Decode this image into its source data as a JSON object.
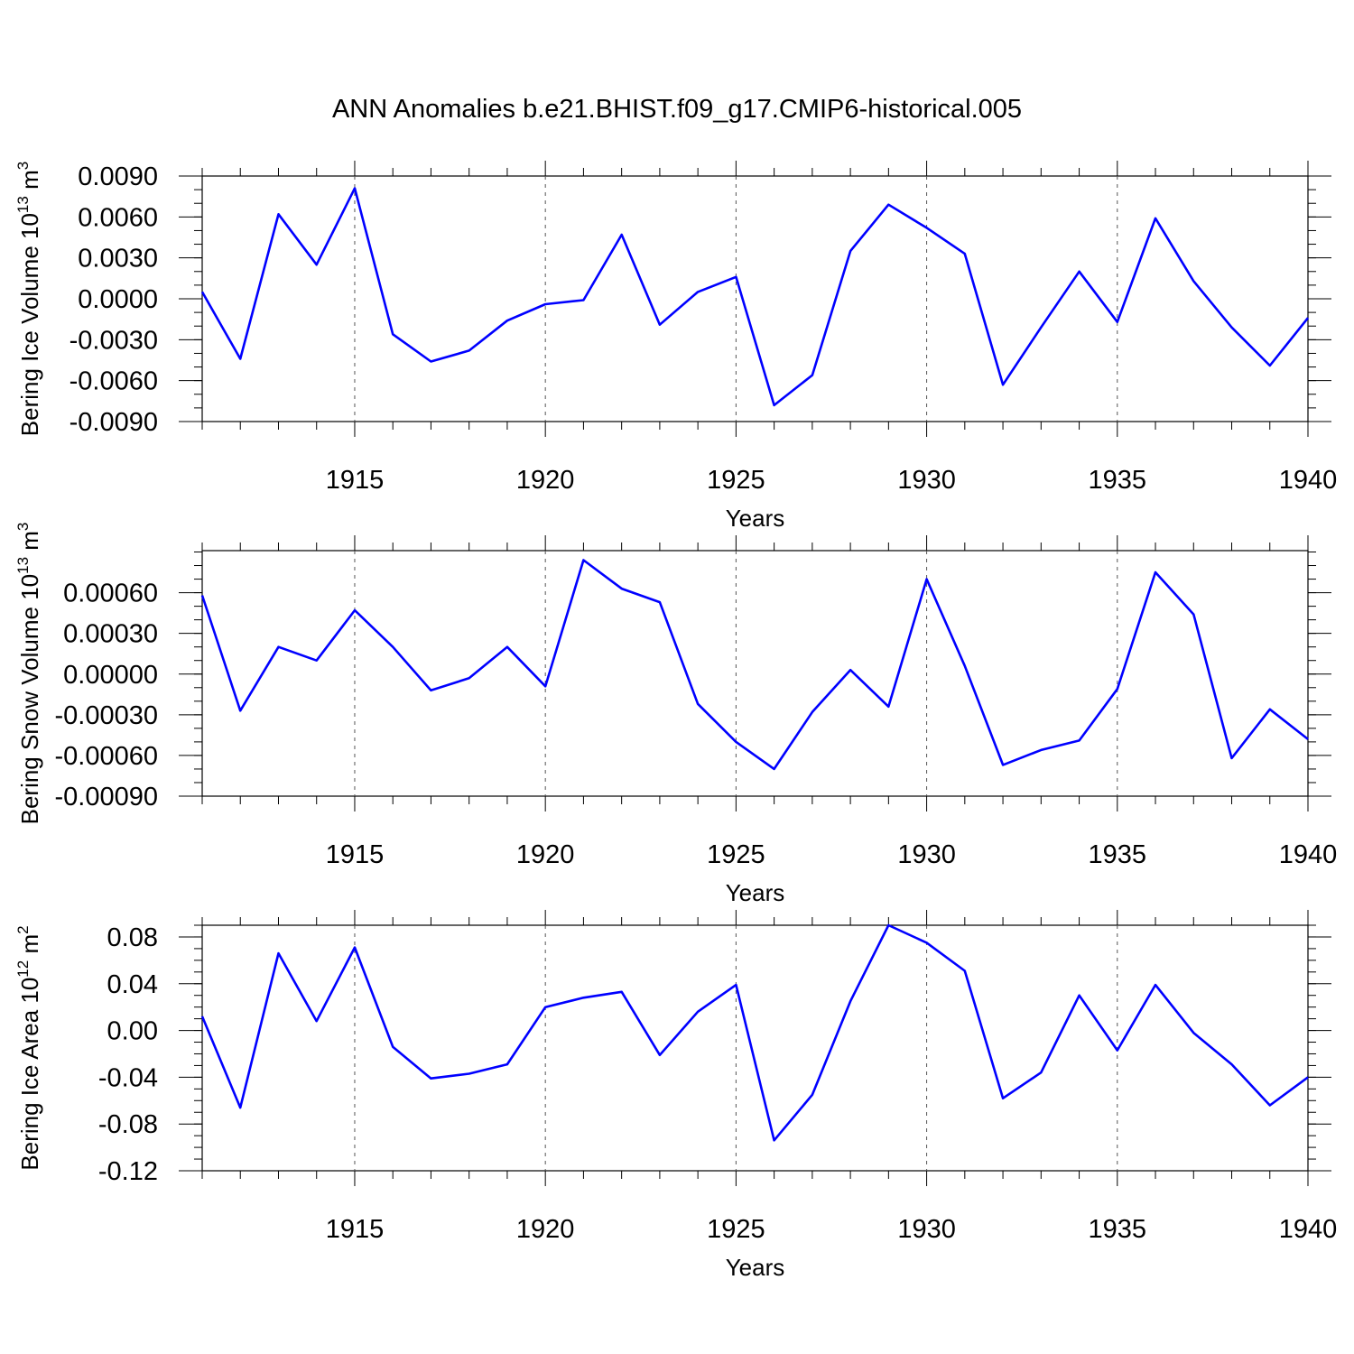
{
  "title": "ANN Anomalies b.e21.BHIST.f09_g17.CMIP6-historical.005",
  "colors": {
    "line": "#0000ff",
    "axis": "#000000",
    "grid": "#555555"
  },
  "chart_data": [
    {
      "type": "line",
      "ylabel": "Bering Ice Volume 10",
      "ylabel_exp": "13",
      "ylabel_unit": " m",
      "ylabel_unit_exp": "3",
      "xlabel": "Years",
      "xlim": [
        1911,
        1940
      ],
      "ylim": [
        -0.009,
        0.009
      ],
      "yticks": [
        -0.009,
        -0.006,
        -0.003,
        0.0,
        0.003,
        0.006,
        0.009
      ],
      "ytick_labels": [
        "-0.0090",
        "-0.0060",
        "-0.0030",
        "0.0000",
        "0.0030",
        "0.0060",
        "0.0090"
      ],
      "yminor_step": 0.001,
      "xticks": [
        1915,
        1920,
        1925,
        1930,
        1935,
        1940
      ],
      "xtick_labels": [
        "1915",
        "1920",
        "1925",
        "1930",
        "1935",
        "1940"
      ],
      "grid_x": true,
      "series": [
        {
          "name": "Bering Ice Volume",
          "x": [
            1911,
            1912,
            1913,
            1914,
            1915,
            1916,
            1917,
            1918,
            1919,
            1920,
            1921,
            1922,
            1923,
            1924,
            1925,
            1926,
            1927,
            1928,
            1929,
            1930,
            1931,
            1932,
            1933,
            1934,
            1935,
            1936,
            1937,
            1938,
            1939,
            1940
          ],
          "values": [
            0.0005,
            -0.0044,
            0.0062,
            0.0025,
            0.0081,
            -0.0026,
            -0.0046,
            -0.0038,
            -0.0016,
            -0.0004,
            -0.0001,
            0.0047,
            -0.0019,
            0.0005,
            0.0016,
            -0.0078,
            -0.0056,
            0.0035,
            0.0069,
            0.0052,
            0.0033,
            -0.0063,
            -0.0021,
            0.002,
            -0.0017,
            0.0059,
            0.0013,
            -0.0021,
            -0.0049,
            -0.0014
          ]
        }
      ]
    },
    {
      "type": "line",
      "ylabel": "Bering Snow Volume 10",
      "ylabel_exp": "13",
      "ylabel_unit": " m",
      "ylabel_unit_exp": "3",
      "xlabel": "Years",
      "xlim": [
        1911,
        1940
      ],
      "ylim": [
        -0.0009,
        0.00091
      ],
      "yticks": [
        -0.0009,
        -0.0006,
        -0.0003,
        0.0,
        0.0003,
        0.0006
      ],
      "ytick_labels": [
        "-0.00090",
        "-0.00060",
        "-0.00030",
        "0.00000",
        "0.00030",
        "0.00060"
      ],
      "yminor_step": 0.0001,
      "xticks": [
        1915,
        1920,
        1925,
        1930,
        1935,
        1940
      ],
      "xtick_labels": [
        "1915",
        "1920",
        "1925",
        "1930",
        "1935",
        "1940"
      ],
      "grid_x": true,
      "series": [
        {
          "name": "Bering Snow Volume",
          "x": [
            1911,
            1912,
            1913,
            1914,
            1915,
            1916,
            1917,
            1918,
            1919,
            1920,
            1921,
            1922,
            1923,
            1924,
            1925,
            1926,
            1927,
            1928,
            1929,
            1930,
            1931,
            1932,
            1933,
            1934,
            1935,
            1936,
            1937,
            1938,
            1939,
            1940
          ],
          "values": [
            0.00058,
            -0.00027,
            0.0002,
            0.0001,
            0.00047,
            0.0002,
            -0.00012,
            -3e-05,
            0.0002,
            -9e-05,
            0.00084,
            0.00063,
            0.00053,
            -0.00022,
            -0.0005,
            -0.0007,
            -0.00028,
            3e-05,
            -0.00024,
            0.0007,
            6e-05,
            -0.00067,
            -0.00056,
            -0.00049,
            -0.00011,
            0.00075,
            0.00044,
            -0.00062,
            -0.00026,
            -0.00048
          ]
        }
      ]
    },
    {
      "type": "line",
      "ylabel": "Bering Ice Area 10",
      "ylabel_exp": "12",
      "ylabel_unit": " m",
      "ylabel_unit_exp": "2",
      "xlabel": "Years",
      "xlim": [
        1911,
        1940
      ],
      "ylim": [
        -0.12,
        0.09
      ],
      "yticks": [
        -0.12,
        -0.08,
        -0.04,
        0.0,
        0.04,
        0.08
      ],
      "ytick_labels": [
        "-0.12",
        "-0.08",
        "-0.04",
        "0.00",
        "0.04",
        "0.08"
      ],
      "yminor_step": 0.01,
      "xticks": [
        1915,
        1920,
        1925,
        1930,
        1935,
        1940
      ],
      "xtick_labels": [
        "1915",
        "1920",
        "1925",
        "1930",
        "1935",
        "1940"
      ],
      "grid_x": true,
      "series": [
        {
          "name": "Bering Ice Area",
          "x": [
            1911,
            1912,
            1913,
            1914,
            1915,
            1916,
            1917,
            1918,
            1919,
            1920,
            1921,
            1922,
            1923,
            1924,
            1925,
            1926,
            1927,
            1928,
            1929,
            1930,
            1931,
            1932,
            1933,
            1934,
            1935,
            1936,
            1937,
            1938,
            1939,
            1940
          ],
          "values": [
            0.012,
            -0.066,
            0.066,
            0.008,
            0.071,
            -0.014,
            -0.041,
            -0.037,
            -0.029,
            0.02,
            0.028,
            0.033,
            -0.021,
            0.016,
            0.039,
            -0.094,
            -0.055,
            0.025,
            0.09,
            0.075,
            0.051,
            -0.058,
            -0.036,
            0.03,
            -0.017,
            0.039,
            -0.002,
            -0.029,
            -0.064,
            -0.04
          ]
        }
      ]
    }
  ]
}
